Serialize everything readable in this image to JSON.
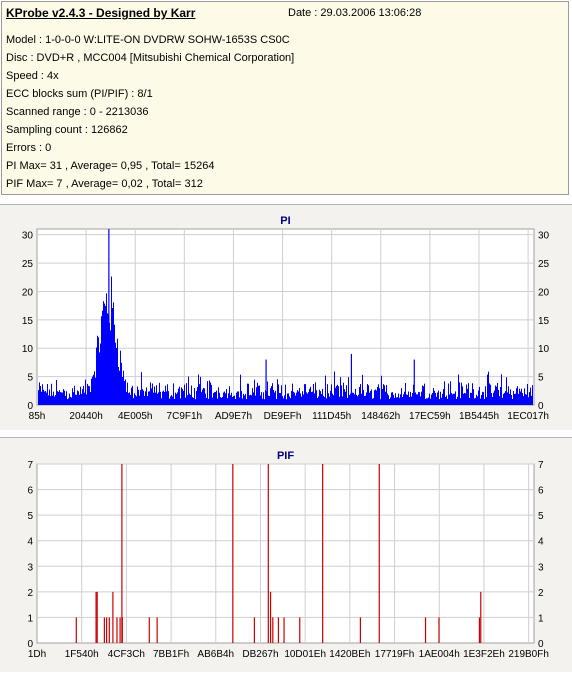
{
  "info": {
    "title": "KProbe v2.4.3 - Designed by Karr",
    "date": "Date : 29.03.2006 13:06:28",
    "lines": [
      "Model : 1-0-0-0 W:LITE-ON DVDRW SOHW-1653S CS0C",
      "Disc : DVD+R , MCC004 [Mitsubishi Chemical Corporation]",
      "Speed : 4x",
      "ECC blocks sum (PI/PIF) : 8/1",
      "Scanned range : 0 - 2213036",
      "Sampling count : 126862",
      "Errors : 0",
      "PI Max= 31 , Average= 0,95 , Total= 15264",
      "PIF Max= 7 , Average= 0,02 , Total= 312"
    ]
  },
  "chart_data": [
    {
      "type": "bar",
      "title": "PI",
      "color": "#0000ff",
      "ylim": [
        0,
        31
      ],
      "yticks": [
        0,
        5,
        10,
        15,
        20,
        25,
        30
      ],
      "xtick_labels": [
        "85h",
        "20440h",
        "4E005h",
        "7C9F1h",
        "AD9E7h",
        "DE9EFh",
        "111D45h",
        "148462h",
        "17EC59h",
        "1B5445h",
        "1EC017h"
      ],
      "x_range": [
        0,
        2213036
      ],
      "grid": true,
      "max": 31,
      "average": 0.95,
      "peak_region": [
        230000,
        400000
      ],
      "peaks": [
        {
          "x": 320000,
          "y": 31
        },
        {
          "x": 1400000,
          "y": 9
        },
        {
          "x": 1680000,
          "y": 8
        },
        {
          "x": 1020000,
          "y": 8
        }
      ]
    },
    {
      "type": "bar",
      "title": "PIF",
      "color": "#cc0000",
      "ylim": [
        0,
        7
      ],
      "yticks": [
        0,
        1,
        2,
        3,
        4,
        5,
        6,
        7
      ],
      "xtick_labels": [
        "1Dh",
        "1F540h",
        "4CF3Ch",
        "7BB1Fh",
        "AB6B4h",
        "DB267h",
        "10D01Eh",
        "1420BEh",
        "17719Fh",
        "1AE004h",
        "1E3F2Eh",
        "219B0Fh"
      ],
      "x_range": [
        0,
        2213036
      ],
      "grid": true,
      "max": 7,
      "average": 0.02,
      "points": [
        {
          "x": 175000,
          "y": 1
        },
        {
          "x": 263000,
          "y": 2
        },
        {
          "x": 268000,
          "y": 2
        },
        {
          "x": 300000,
          "y": 1
        },
        {
          "x": 310000,
          "y": 1
        },
        {
          "x": 322000,
          "y": 1
        },
        {
          "x": 338000,
          "y": 2
        },
        {
          "x": 356000,
          "y": 1
        },
        {
          "x": 370000,
          "y": 1
        },
        {
          "x": 378000,
          "y": 7
        },
        {
          "x": 380000,
          "y": 1
        },
        {
          "x": 500000,
          "y": 1
        },
        {
          "x": 535000,
          "y": 1
        },
        {
          "x": 872000,
          "y": 7
        },
        {
          "x": 968000,
          "y": 1
        },
        {
          "x": 1030000,
          "y": 7
        },
        {
          "x": 1040000,
          "y": 2
        },
        {
          "x": 1050000,
          "y": 1
        },
        {
          "x": 1075000,
          "y": 1
        },
        {
          "x": 1100000,
          "y": 1
        },
        {
          "x": 1170000,
          "y": 1
        },
        {
          "x": 1272000,
          "y": 7
        },
        {
          "x": 1440000,
          "y": 1
        },
        {
          "x": 1524000,
          "y": 7
        },
        {
          "x": 1730000,
          "y": 1
        },
        {
          "x": 1790000,
          "y": 1
        },
        {
          "x": 1970000,
          "y": 1
        },
        {
          "x": 1976000,
          "y": 2
        }
      ]
    }
  ]
}
